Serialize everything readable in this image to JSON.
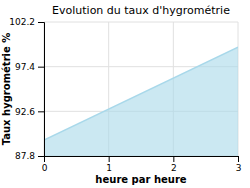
{
  "chart_data": {
    "type": "area",
    "title": "Evolution du taux d'hygrométrie",
    "xlabel": "heure par heure",
    "ylabel": "Taux hygrométrie %",
    "x": [
      0,
      3
    ],
    "values": [
      89.5,
      99.5
    ],
    "color": "#a8d8ea",
    "xlim": [
      0,
      3
    ],
    "ylim": [
      87.8,
      102.2
    ],
    "xticks": [
      0,
      1,
      2,
      3
    ],
    "yticks": [
      87.8,
      92.6,
      97.4,
      102.2
    ],
    "grid": true
  }
}
